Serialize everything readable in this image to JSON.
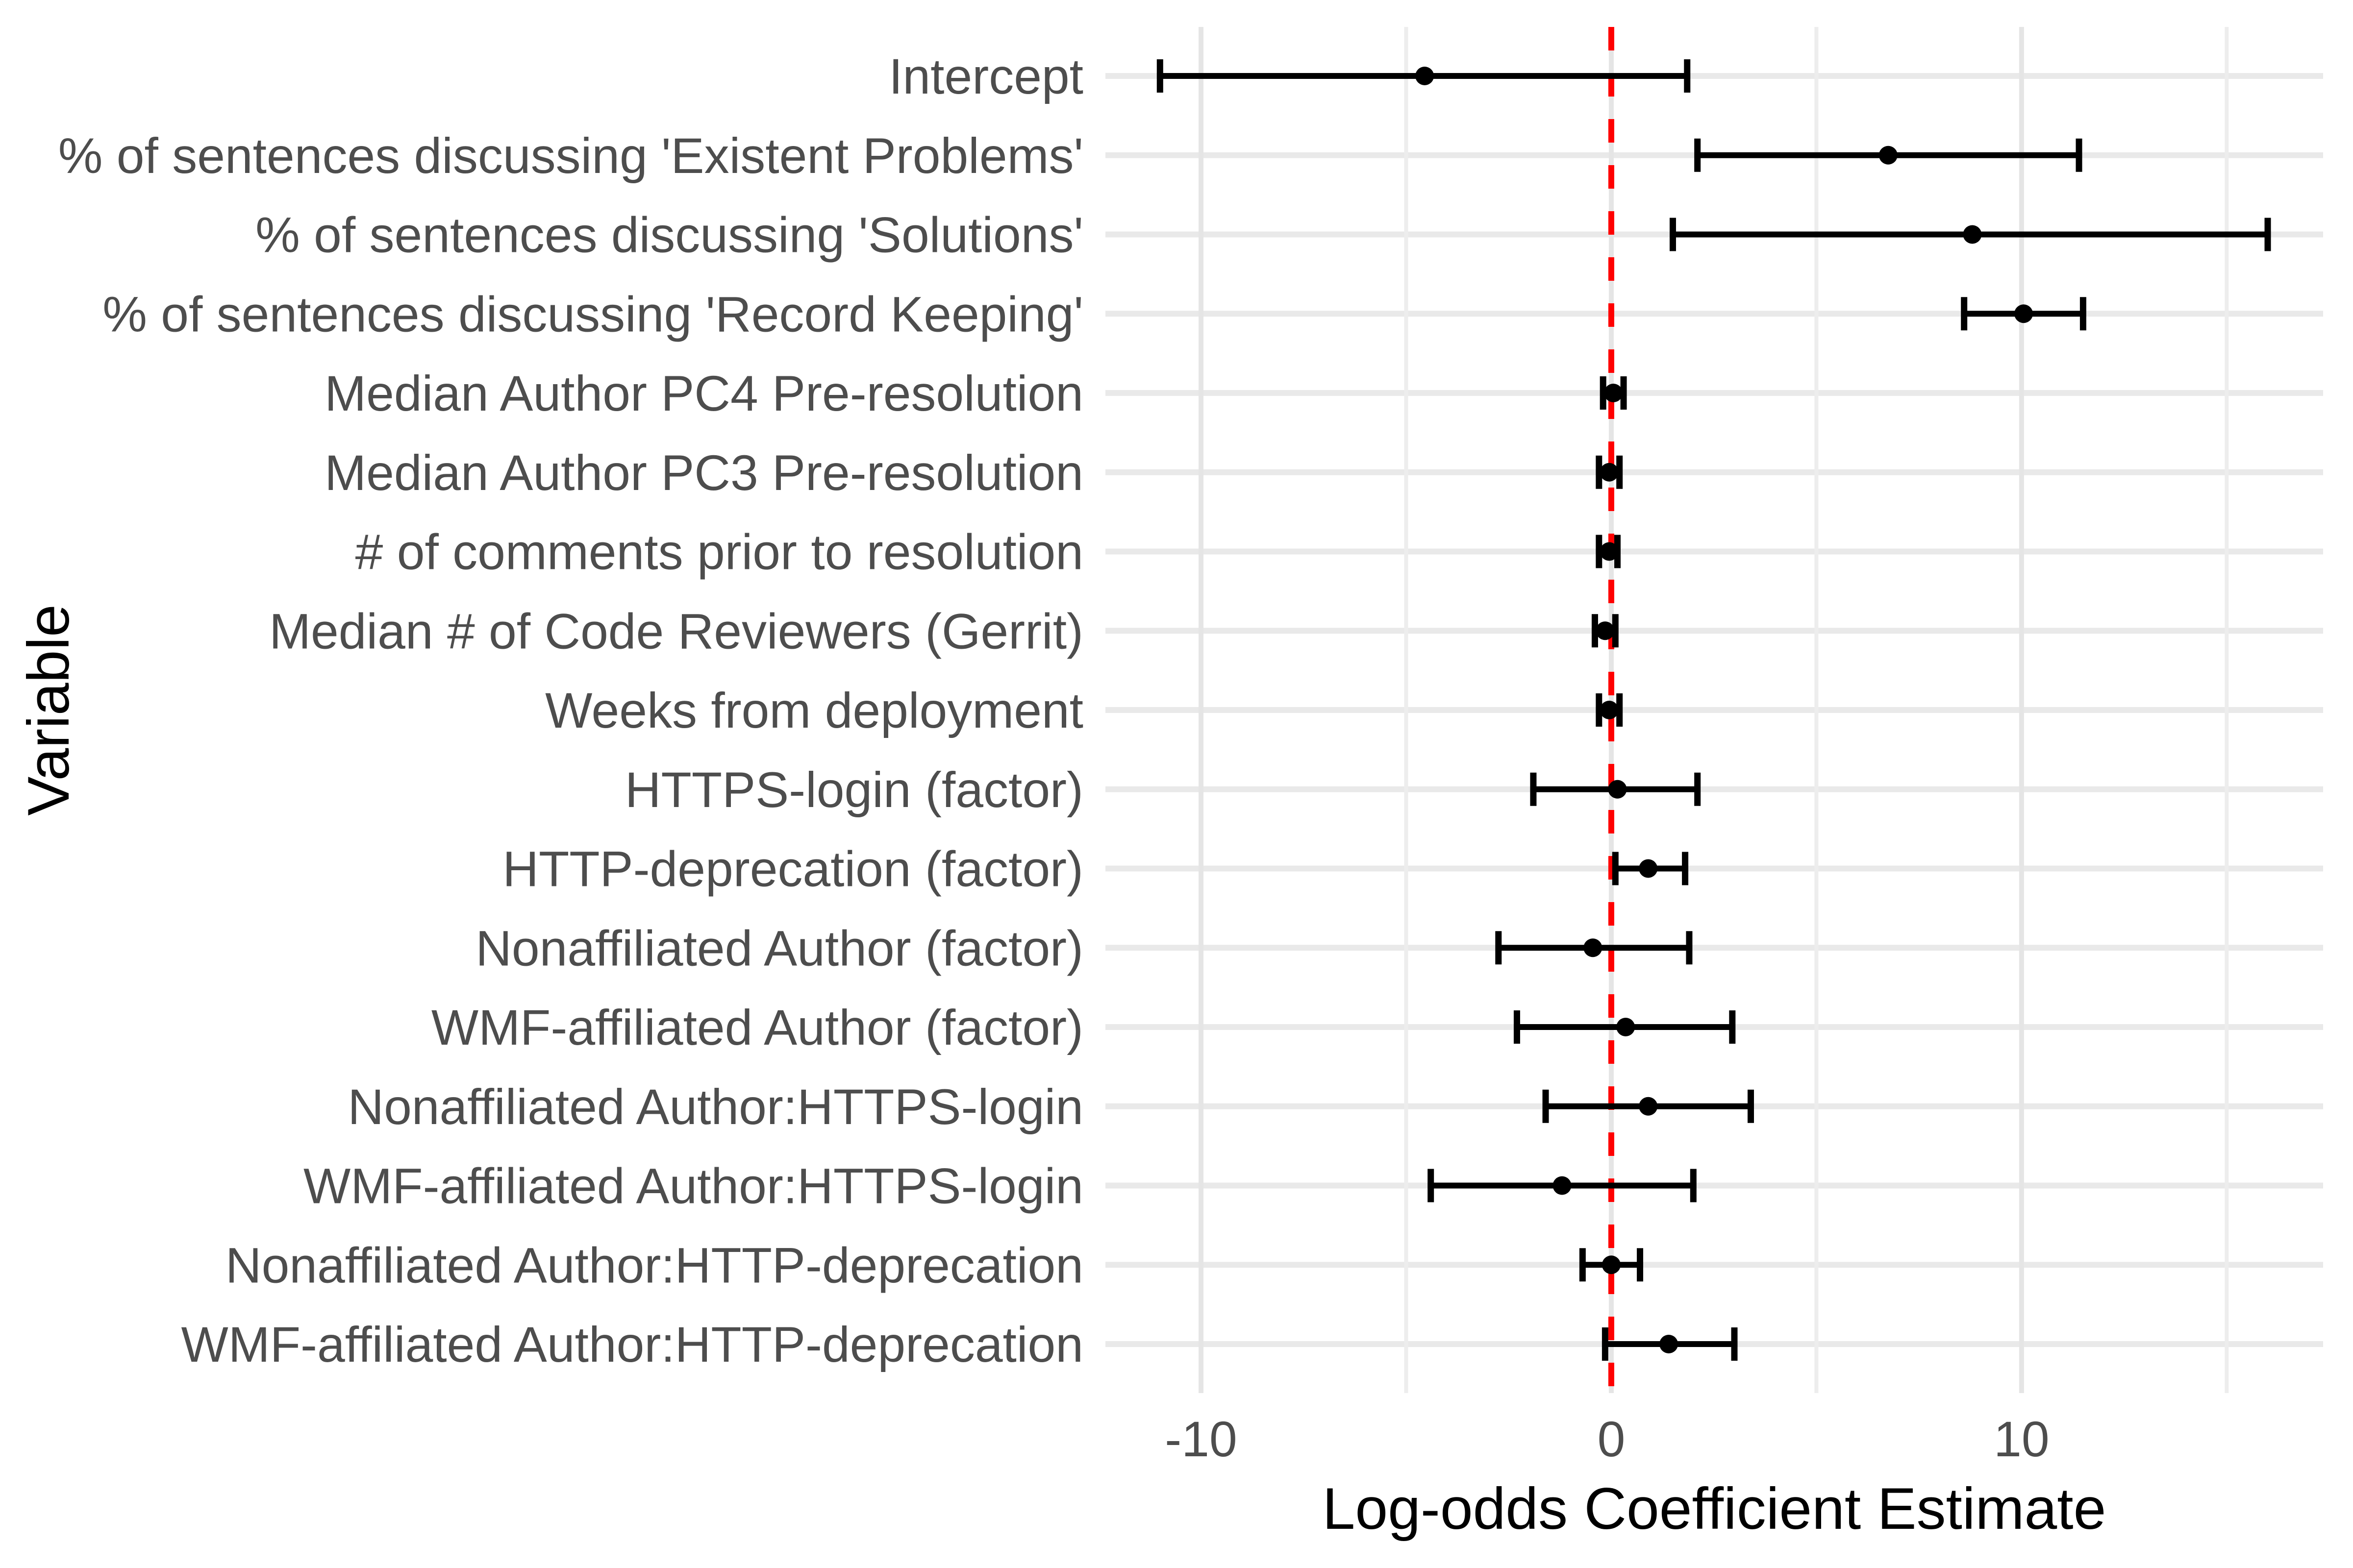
{
  "chart_data": {
    "type": "scatter",
    "subtype": "forest-coefficient-plot",
    "title": "",
    "xlabel": "Log-odds Coefficient Estimate",
    "ylabel": "Variable",
    "xlim": [
      -12.33,
      17.35
    ],
    "x_ticks": [
      -10,
      0,
      10
    ],
    "x_tick_labels": [
      "-10",
      "0",
      "10"
    ],
    "x_minor_gridlines": [
      -5,
      5,
      15
    ],
    "grid": true,
    "legend": "none",
    "reference_line": {
      "x": 0,
      "style": "dashed",
      "color": "#FF0000"
    },
    "points": [
      {
        "label": "Intercept",
        "estimate": -4.55,
        "ci_low": -11.0,
        "ci_high": 1.85
      },
      {
        "label": "% of sentences discussing 'Existent Problems'",
        "estimate": 6.75,
        "ci_low": 2.1,
        "ci_high": 11.4
      },
      {
        "label": "% of sentences discussing 'Solutions'",
        "estimate": 8.8,
        "ci_low": 1.5,
        "ci_high": 16.0
      },
      {
        "label": "% of sentences discussing 'Record Keeping'",
        "estimate": 10.05,
        "ci_low": 8.6,
        "ci_high": 11.5
      },
      {
        "label": "Median Author PC4 Pre-resolution",
        "estimate": 0.05,
        "ci_low": -0.2,
        "ci_high": 0.3
      },
      {
        "label": "Median Author PC3 Pre-resolution",
        "estimate": -0.05,
        "ci_low": -0.3,
        "ci_high": 0.2
      },
      {
        "label": "# of comments prior to resolution",
        "estimate": -0.05,
        "ci_low": -0.3,
        "ci_high": 0.15
      },
      {
        "label": "Median # of Code Reviewers (Gerrit)",
        "estimate": -0.15,
        "ci_low": -0.4,
        "ci_high": 0.1
      },
      {
        "label": "Weeks from deployment",
        "estimate": -0.05,
        "ci_low": -0.3,
        "ci_high": 0.2
      },
      {
        "label": "HTTPS-login (factor)",
        "estimate": 0.15,
        "ci_low": -1.9,
        "ci_high": 2.1
      },
      {
        "label": "HTTP-deprecation (factor)",
        "estimate": 0.9,
        "ci_low": 0.1,
        "ci_high": 1.8
      },
      {
        "label": "Nonaffiliated Author (factor)",
        "estimate": -0.45,
        "ci_low": -2.75,
        "ci_high": 1.9
      },
      {
        "label": "WMF-affiliated Author (factor)",
        "estimate": 0.35,
        "ci_low": -2.3,
        "ci_high": 2.95
      },
      {
        "label": "Nonaffiliated Author:HTTPS-login",
        "estimate": 0.9,
        "ci_low": -1.6,
        "ci_high": 3.4
      },
      {
        "label": "WMF-affiliated Author:HTTPS-login",
        "estimate": -1.2,
        "ci_low": -4.4,
        "ci_high": 2.0
      },
      {
        "label": "Nonaffiliated Author:HTTP-deprecation",
        "estimate": 0.0,
        "ci_low": -0.7,
        "ci_high": 0.7
      },
      {
        "label": "WMF-affiliated Author:HTTP-deprecation",
        "estimate": 1.4,
        "ci_low": -0.15,
        "ci_high": 3.0
      }
    ]
  },
  "colors": {
    "background": "#FFFFFF",
    "point_and_bar": "#000000",
    "reference_line": "#FF0000",
    "axis_text": "#4D4D4D",
    "axis_title": "#000000",
    "grid_major": "#E5E5E5",
    "grid_minor": "#EDEDED",
    "grid_row": "#E9E9E9"
  }
}
